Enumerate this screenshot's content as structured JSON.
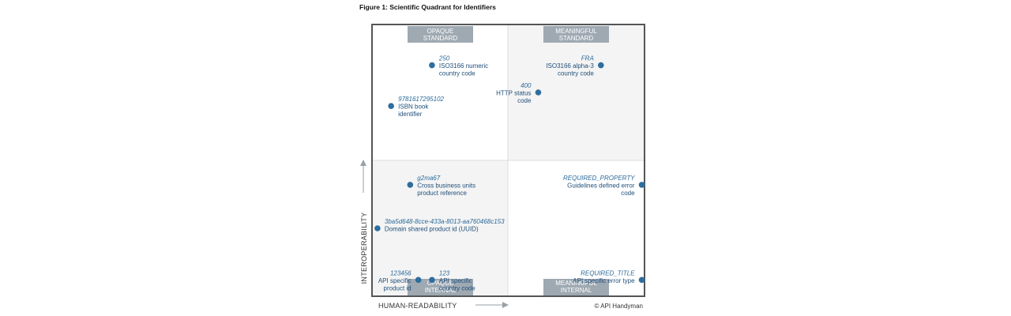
{
  "title": "Figure 1: Scientific Quadrant for Identifiers",
  "copyright": "© API Handyman",
  "chart_data": {
    "type": "scatter",
    "xlabel": "HUMAN-READABILITY",
    "ylabel": "INTEROPERABILITY",
    "quadrants": {
      "top_left": [
        "OPAQUE",
        "STANDARD"
      ],
      "top_right": [
        "MEANINGFUL",
        "STANDARD"
      ],
      "bottom_left": [
        "OPAQUE",
        "INTERNAL"
      ],
      "bottom_right": [
        "MEANINGFUL",
        "INTERNAL"
      ]
    },
    "colors": {
      "point": "#2e6e9e",
      "badge": "#9ea9b2",
      "shade": "#f4f4f4",
      "border": "#555555"
    },
    "points": [
      {
        "value": "250",
        "desc": [
          "ISO3166 numeric",
          "country code"
        ],
        "x": 0.22,
        "y": 0.85,
        "align": "left"
      },
      {
        "value": "FRA",
        "desc": [
          "ISO3166 alpha-3",
          "country code"
        ],
        "x": 0.84,
        "y": 0.85,
        "align": "right"
      },
      {
        "value": "400",
        "desc": [
          "HTTP status",
          "code"
        ],
        "x": 0.61,
        "y": 0.75,
        "align": "right"
      },
      {
        "value": "9781617295102",
        "desc": [
          "ISBN book",
          "identifier"
        ],
        "x": 0.07,
        "y": 0.7,
        "align": "left"
      },
      {
        "value": "g2ma67",
        "desc": [
          "Cross business units",
          "product reference"
        ],
        "x": 0.14,
        "y": 0.41,
        "align": "left"
      },
      {
        "value": "REQUIRED_PROPERTY",
        "desc": [
          "Guidelines defined error",
          "code"
        ],
        "x": 0.99,
        "y": 0.41,
        "align": "right"
      },
      {
        "value": "3ba5d648-8cce-433a-8013-aa760468c153",
        "desc": [
          "Domain shared product id (UUID)"
        ],
        "x": 0.02,
        "y": 0.25,
        "align": "left"
      },
      {
        "value": "123456",
        "desc": [
          "API specific",
          "product id"
        ],
        "x": 0.17,
        "y": 0.06,
        "align": "right"
      },
      {
        "value": "123",
        "desc": [
          "API specific",
          "country code"
        ],
        "x": 0.22,
        "y": 0.06,
        "align": "left"
      },
      {
        "value": "REQUIRED_TITLE",
        "desc": [
          "API specific error type"
        ],
        "x": 0.99,
        "y": 0.06,
        "align": "right"
      }
    ]
  }
}
